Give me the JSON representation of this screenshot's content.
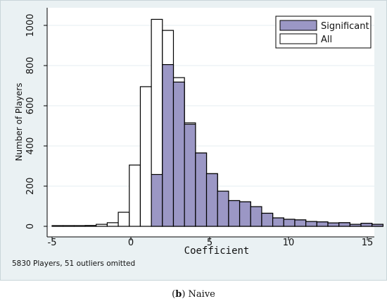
{
  "chart_data": {
    "type": "bar",
    "subtype": "overlaid-histogram",
    "xlabel": "Coefficient",
    "ylabel": "Number of Players",
    "xlim": [
      -5.5,
      15.5
    ],
    "ylim": [
      0,
      1050
    ],
    "xticks": [
      -5,
      0,
      5,
      10,
      15
    ],
    "yticks": [
      0,
      200,
      400,
      600,
      800,
      1000
    ],
    "bin_width": 0.7,
    "series": [
      {
        "name": "All",
        "color": "#ffffff",
        "bins": [
          [
            -5.0,
            0
          ],
          [
            -4.3,
            0
          ],
          [
            -3.6,
            0
          ],
          [
            -2.9,
            2
          ],
          [
            -2.2,
            10
          ],
          [
            -1.5,
            18
          ],
          [
            -0.8,
            70
          ],
          [
            -0.1,
            305
          ],
          [
            0.6,
            695
          ],
          [
            1.3,
            1030
          ],
          [
            2.0,
            975
          ],
          [
            2.7,
            740
          ],
          [
            3.4,
            515
          ],
          [
            4.1,
            365
          ],
          [
            4.8,
            262
          ],
          [
            5.5,
            175
          ],
          [
            6.2,
            128
          ],
          [
            6.9,
            122
          ],
          [
            7.6,
            98
          ],
          [
            8.3,
            65
          ],
          [
            9.0,
            42
          ],
          [
            9.7,
            35
          ],
          [
            10.4,
            32
          ],
          [
            11.1,
            24
          ],
          [
            11.8,
            22
          ],
          [
            12.5,
            17
          ],
          [
            13.2,
            18
          ],
          [
            13.9,
            10
          ],
          [
            14.6,
            15
          ],
          [
            15.3,
            10
          ]
        ]
      },
      {
        "name": "Significant",
        "color": "#9b97c5",
        "bins": [
          [
            1.3,
            258
          ],
          [
            2.0,
            805
          ],
          [
            2.7,
            718
          ],
          [
            3.4,
            508
          ],
          [
            4.1,
            365
          ],
          [
            4.8,
            262
          ],
          [
            5.5,
            175
          ],
          [
            6.2,
            128
          ],
          [
            6.9,
            122
          ],
          [
            7.6,
            98
          ],
          [
            8.3,
            65
          ],
          [
            9.0,
            42
          ],
          [
            9.7,
            35
          ],
          [
            10.4,
            32
          ],
          [
            11.1,
            24
          ],
          [
            11.8,
            22
          ],
          [
            12.5,
            17
          ],
          [
            13.2,
            18
          ],
          [
            13.9,
            10
          ],
          [
            14.6,
            15
          ],
          [
            15.3,
            10
          ]
        ]
      }
    ],
    "legend": {
      "position": "top-right",
      "entries": [
        "Significant",
        "All"
      ]
    },
    "grid": {
      "y": true,
      "x": false
    }
  },
  "note": "5830 Players, 51 outliers omitted",
  "caption": {
    "label": "b",
    "text": "Naive"
  }
}
